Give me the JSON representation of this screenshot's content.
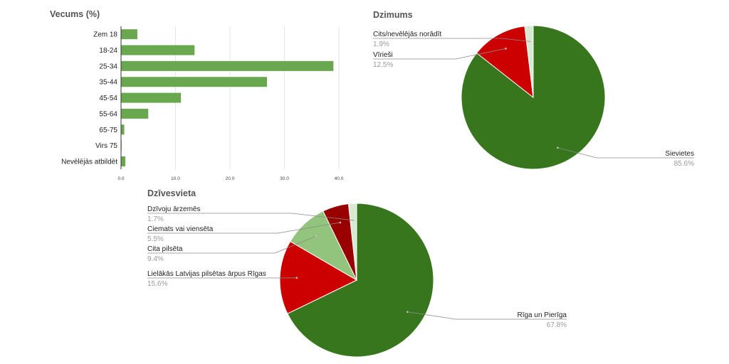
{
  "chart_data": [
    {
      "type": "bar",
      "orientation": "horizontal",
      "title": "Vecums (%)",
      "categories": [
        "Zem 18",
        "18-24",
        "25-34",
        "35-44",
        "45-54",
        "55-64",
        "65-75",
        "Virs 75",
        "Nevēlējās atbildēt"
      ],
      "values": [
        3.0,
        13.5,
        39.0,
        26.8,
        11.0,
        5.0,
        0.6,
        0.1,
        0.8
      ],
      "xlim": [
        0,
        40
      ],
      "ticks": [
        "0.0",
        "10.0",
        "20.0",
        "30.0",
        "40.0"
      ],
      "grid": true,
      "color": "#6aa84f"
    },
    {
      "type": "pie",
      "title": "Dzimums",
      "slices": [
        {
          "label": "Sievietes",
          "value": 85.6,
          "pct": "85.6%",
          "color": "#38761d"
        },
        {
          "label": "Vīrieši",
          "value": 12.5,
          "pct": "12.5%",
          "color": "#cc0000"
        },
        {
          "label": "Cits/nevēlējās norādīt",
          "value": 1.9,
          "pct": "1.9%",
          "color": "#d9ead3"
        }
      ]
    },
    {
      "type": "pie",
      "title": "Dzīvesvieta",
      "slices": [
        {
          "label": "Rīga un Pierīga",
          "value": 67.8,
          "pct": "67.8%",
          "color": "#38761d"
        },
        {
          "label": "Lielākās Latvijas pilsētas ārpus Rīgas",
          "value": 15.6,
          "pct": "15.6%",
          "color": "#cc0000"
        },
        {
          "label": "Cita pilsēta",
          "value": 9.4,
          "pct": "9.4%",
          "color": "#93c47d"
        },
        {
          "label": "Ciemats vai viensēta",
          "value": 5.5,
          "pct": "5.5%",
          "color": "#990000"
        },
        {
          "label": "Dzīvoju ārzemēs",
          "value": 1.7,
          "pct": "1.7%",
          "color": "#d9ead3"
        }
      ]
    }
  ]
}
